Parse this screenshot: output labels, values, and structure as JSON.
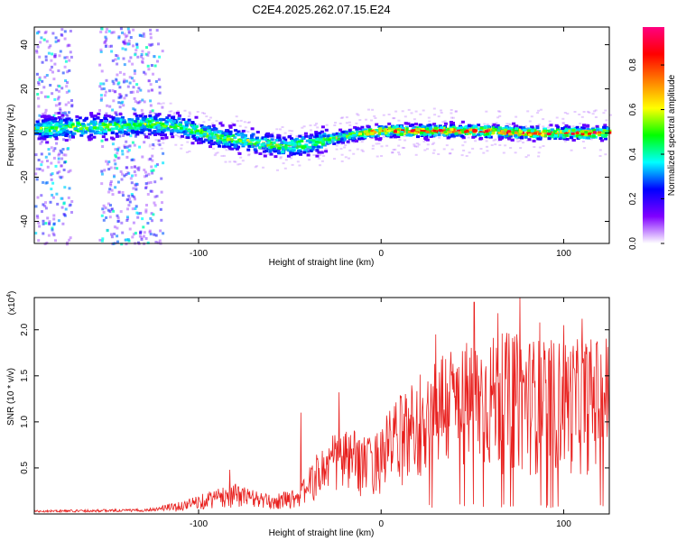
{
  "title": "C2E4.2025.262.07.15.E24",
  "chart_data": [
    {
      "type": "heatmap",
      "name": "spectrogram",
      "xlabel": "Height of straight line (km)",
      "ylabel": "Frequency (Hz)",
      "xlim": [
        -190,
        125
      ],
      "ylim": [
        -50,
        48
      ],
      "xticks": [
        -100,
        0,
        100
      ],
      "xtick_labels": [
        "-100",
        "0",
        "100"
      ],
      "yticks": [
        -40,
        -20,
        0,
        20,
        40
      ],
      "ytick_labels": [
        "-40",
        "-20",
        "0",
        "20",
        "40"
      ],
      "colorbar": {
        "label": "Normalized spectral amplitude",
        "range": [
          0,
          0.97
        ],
        "ticks": [
          0.0,
          0.2,
          0.4,
          0.6,
          0.8
        ],
        "tick_labels": [
          "0.0",
          "0.2",
          "0.4",
          "0.6",
          "0.8"
        ],
        "colormap": [
          "#ffffff",
          "#8000ff",
          "#0000ff",
          "#00ffff",
          "#00ff00",
          "#ffff00",
          "#ff8000",
          "#ff0000",
          "#ff0080"
        ]
      },
      "center_track": {
        "x": [
          -190,
          -150,
          -130,
          -110,
          -90,
          -70,
          -55,
          -40,
          -25,
          -10,
          0,
          20,
          50,
          80,
          100,
          125
        ],
        "y": [
          2,
          3,
          4,
          3,
          -2,
          -4,
          -6,
          -5,
          -2,
          0,
          1,
          1,
          1,
          0,
          0,
          0
        ]
      }
    },
    {
      "type": "line",
      "name": "snr",
      "xlabel": "Height of straight line (km)",
      "ylabel": "SNR (10 * v/v)",
      "y_multiplier": "(x10",
      "y_multiplier_exp": "4",
      "y_multiplier_close": ")",
      "xlim": [
        -190,
        125
      ],
      "ylim": [
        0,
        2.35
      ],
      "xticks": [
        -100,
        0,
        100
      ],
      "xtick_labels": [
        "-100",
        "0",
        "100"
      ],
      "yticks": [
        0.5,
        1.0,
        1.5,
        2.0
      ],
      "ytick_labels": [
        "0.5",
        "1.0",
        "1.5",
        "2.0"
      ],
      "color": "#e8201e",
      "envelope": {
        "x": [
          -190,
          -130,
          -110,
          -95,
          -80,
          -60,
          -45,
          -35,
          -25,
          -15,
          -5,
          5,
          15,
          30,
          50,
          70,
          90,
          110,
          125
        ],
        "y": [
          0.03,
          0.04,
          0.08,
          0.15,
          0.2,
          0.12,
          0.18,
          0.4,
          0.55,
          0.55,
          0.5,
          0.7,
          0.85,
          1.1,
          1.15,
          1.2,
          1.15,
          1.15,
          1.2
        ]
      },
      "peaks": {
        "x": [
          -83,
          -44,
          -23,
          30,
          51,
          64,
          76,
          87,
          100,
          110,
          118
        ],
        "y": [
          0.48,
          1.1,
          1.32,
          1.95,
          2.3,
          2.18,
          2.35,
          2.08,
          2.05,
          2.12,
          1.85
        ]
      }
    }
  ]
}
